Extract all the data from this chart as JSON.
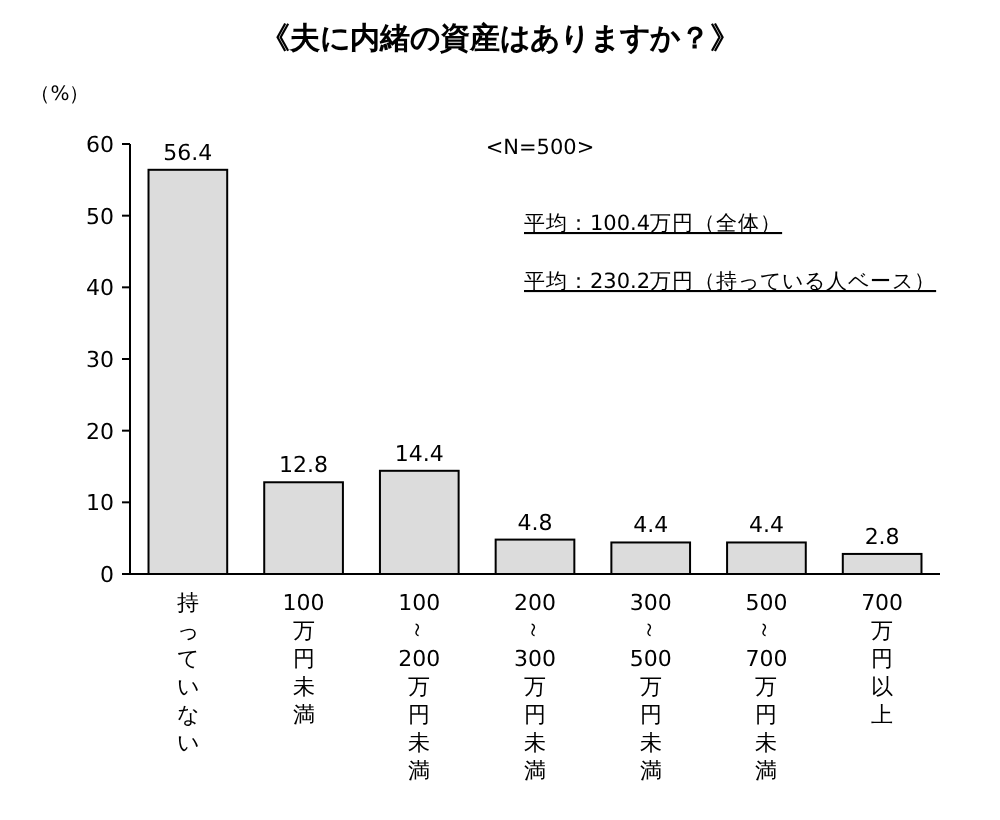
{
  "chart_data": {
    "type": "bar",
    "title": "《夫に内緒の資産はありますか？》",
    "ylabel": "（%）",
    "categories": [
      "持っていない",
      "100万円未満",
      "100～200万円未満",
      "200～300万円未満",
      "300～500万円未満",
      "500～700万円未満",
      "700万円以上"
    ],
    "values": [
      56.4,
      12.8,
      14.4,
      4.8,
      4.4,
      4.4,
      2.8
    ],
    "color": "#dcdcdc",
    "ylim": [
      0,
      60
    ],
    "yticks": [
      0,
      10,
      20,
      30,
      40,
      50,
      60
    ],
    "data_labels": true,
    "annotations": [
      "<N=500>",
      "平均：100.4万円（全体）",
      "平均：230.2万円（持っている人ベース）"
    ]
  }
}
